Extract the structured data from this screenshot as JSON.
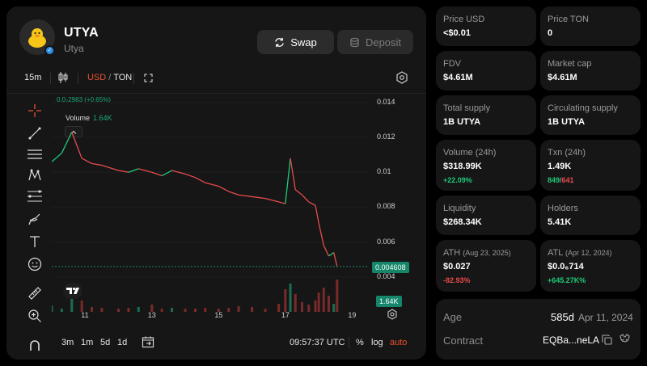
{
  "token": {
    "name": "UTYA",
    "symbol_subtitle": "Utya"
  },
  "actions": {
    "swap_label": "Swap",
    "deposit_label": "Deposit"
  },
  "toolbar": {
    "interval": "15m",
    "currency_active": "USD",
    "currency_sep": " / ",
    "currency_other": "TON"
  },
  "chart": {
    "price_change": "0.0₂2983 (+0.65%)",
    "volume_label": "Volume",
    "volume_value": "1.64K",
    "y_ticks": [
      "0.014",
      "0.012",
      "0.01",
      "0.008",
      "0.006",
      "0.004"
    ],
    "x_ticks": [
      "11",
      "13",
      "15",
      "17",
      "19"
    ],
    "current_price_tag": "0.004608",
    "current_volume_tag": "1.64K"
  },
  "chart_data": {
    "type": "line",
    "x_label": "",
    "y_label": "",
    "ylim": [
      0.002,
      0.0145
    ],
    "x_range": [
      10,
      19.5
    ],
    "series": [
      {
        "x": [
          10.0,
          10.3,
          10.6,
          10.9,
          11.2,
          11.5,
          12.0,
          12.3,
          12.6,
          13.0,
          13.3,
          13.6,
          14.0,
          14.3,
          14.6,
          15.0,
          15.3,
          15.6,
          16.0,
          16.4,
          16.8,
          17.0,
          17.15,
          17.3,
          17.5,
          17.7,
          17.9,
          18.0,
          18.15,
          18.3,
          18.45,
          18.55
        ],
        "values": [
          0.0106,
          0.0111,
          0.0123,
          0.0108,
          0.0105,
          0.0104,
          0.0101,
          0.01,
          0.0102,
          0.01,
          0.0098,
          0.0101,
          0.0099,
          0.0097,
          0.0094,
          0.0092,
          0.0089,
          0.0087,
          0.0086,
          0.0085,
          0.0083,
          0.0082,
          0.0108,
          0.009,
          0.0087,
          0.0083,
          0.0081,
          0.0071,
          0.0058,
          0.0052,
          0.0054,
          0.0046
        ]
      }
    ],
    "volume": [
      8,
      4,
      30,
      14,
      6,
      5,
      4,
      5,
      6,
      9,
      4,
      5,
      4,
      4,
      5,
      4,
      5,
      7,
      6,
      4,
      10,
      28,
      35,
      22,
      12,
      9,
      14,
      24,
      30,
      20,
      10,
      40
    ]
  },
  "bottom": {
    "ranges": [
      "3m",
      "1m",
      "5d",
      "1d"
    ],
    "time": "09:57:37 UTC",
    "percent": "%",
    "log": "log",
    "auto": "auto"
  },
  "stats": [
    {
      "label": "Price USD",
      "value": "<$0.01"
    },
    {
      "label": "Price TON",
      "value": "0"
    },
    {
      "label": "FDV",
      "value": "$4.61M"
    },
    {
      "label": "Market cap",
      "value": "$4.61M"
    },
    {
      "label": "Total supply",
      "value": "1B UTYA"
    },
    {
      "label": "Circulating supply",
      "value": "1B UTYA"
    },
    {
      "label": "Volume (24h)",
      "value": "$318.99K",
      "sub": "+22.09%"
    },
    {
      "label": "Txn (24h)",
      "value": "1.49K",
      "buys": "849",
      "sep": "/",
      "sells": "641"
    },
    {
      "label": "Liquidity",
      "value": "$268.34K"
    },
    {
      "label": "Holders",
      "value": "5.41K"
    },
    {
      "label": "ATH",
      "date": "(Aug 23, 2025)",
      "value": "$0.027",
      "sub": "-82.93%"
    },
    {
      "label": "ATL",
      "date": "(Apr 12, 2024)",
      "value": "$0.0₆714",
      "sub": "+645.27K%"
    }
  ],
  "info": {
    "age_label": "Age",
    "age_value": "585d",
    "age_date": "Apr 11, 2024",
    "contract_label": "Contract",
    "contract_value": "EQBa...neLA"
  },
  "colors": {
    "up": "#1fca7a",
    "down": "#e84b4b",
    "accent": "#e8522e",
    "card": "#161616"
  }
}
